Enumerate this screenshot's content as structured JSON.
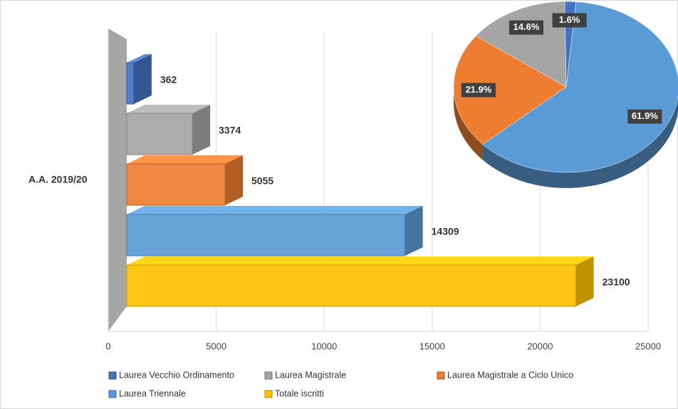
{
  "chart_data": [
    {
      "type": "bar3d",
      "categories": [
        "A.A. 2019/20"
      ],
      "series": [
        {
          "name": "Laurea Vecchio Ordinamento",
          "color": "#4472c4",
          "values": [
            362
          ]
        },
        {
          "name": "Laurea Magistrale",
          "color": "#a5a5a5",
          "values": [
            3374
          ]
        },
        {
          "name": "Laurea Magistrale a Ciclo Unico",
          "color": "#ed7d31",
          "values": [
            5055
          ]
        },
        {
          "name": "Laurea Triennale",
          "color": "#5b9bd5",
          "values": [
            14309
          ]
        },
        {
          "name": "Totale iscritti",
          "color": "#ffc000",
          "values": [
            23100
          ]
        }
      ],
      "xlim": [
        0,
        25000
      ],
      "xticks": [
        0,
        5000,
        10000,
        15000,
        20000,
        25000
      ],
      "grid": true
    },
    {
      "type": "pie3d",
      "values": [
        1.6,
        14.6,
        21.9,
        61.9
      ],
      "value_labels": [
        "1.6%",
        "14.6%",
        "21.9%",
        "61.9%"
      ],
      "colors": [
        "#4472c4",
        "#a5a5a5",
        "#ed7d31",
        "#5b9bd5"
      ]
    }
  ]
}
